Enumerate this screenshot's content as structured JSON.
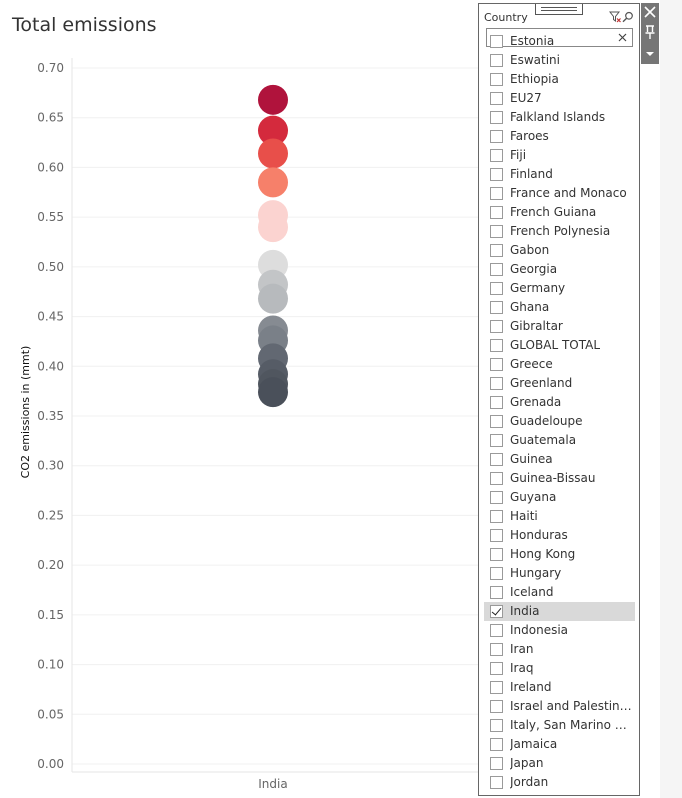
{
  "sheet": {
    "title": "Total emissions"
  },
  "chart_data": {
    "type": "scatter",
    "title": "Total emissions",
    "xlabel": "",
    "ylabel": "CO2 emissions in (mmt)",
    "categories": [
      "India"
    ],
    "ylim": [
      0,
      0.7
    ],
    "yticks": [
      0.0,
      0.05,
      0.1,
      0.15,
      0.2,
      0.25,
      0.3,
      0.35,
      0.4,
      0.45,
      0.5,
      0.55,
      0.6,
      0.65,
      0.7
    ],
    "ytick_labels": [
      "0.00",
      "0.05",
      "0.10",
      "0.15",
      "0.20",
      "0.25",
      "0.30",
      "0.35",
      "0.40",
      "0.45",
      "0.50",
      "0.55",
      "0.60",
      "0.65",
      "0.70"
    ],
    "grid": true,
    "points": [
      {
        "category": "India",
        "y": 0.668,
        "color": "#b0133c"
      },
      {
        "category": "India",
        "y": 0.637,
        "color": "#d42a3d"
      },
      {
        "category": "India",
        "y": 0.614,
        "color": "#e84f4a"
      },
      {
        "category": "India",
        "y": 0.585,
        "color": "#f6806a"
      },
      {
        "category": "India",
        "y": 0.552,
        "color": "#fbd3d0"
      },
      {
        "category": "India",
        "y": 0.54,
        "color": "#fbd3d0"
      },
      {
        "category": "India",
        "y": 0.502,
        "color": "#dddddd"
      },
      {
        "category": "India",
        "y": 0.482,
        "color": "#c3c5c7"
      },
      {
        "category": "India",
        "y": 0.468,
        "color": "#b7babd"
      },
      {
        "category": "India",
        "y": 0.436,
        "color": "#868b92"
      },
      {
        "category": "India",
        "y": 0.426,
        "color": "#7a8088"
      },
      {
        "category": "India",
        "y": 0.408,
        "color": "#626872"
      },
      {
        "category": "India",
        "y": 0.392,
        "color": "#565c66"
      },
      {
        "category": "India",
        "y": 0.382,
        "color": "#50565f"
      },
      {
        "category": "India",
        "y": 0.374,
        "color": "#4a505a"
      }
    ]
  },
  "filter": {
    "title": "Country",
    "search": {
      "value": "",
      "placeholder": ""
    },
    "items": [
      {
        "label": "Estonia",
        "checked": false
      },
      {
        "label": "Eswatini",
        "checked": false
      },
      {
        "label": "Ethiopia",
        "checked": false
      },
      {
        "label": "EU27",
        "checked": false
      },
      {
        "label": "Falkland Islands",
        "checked": false
      },
      {
        "label": "Faroes",
        "checked": false
      },
      {
        "label": "Fiji",
        "checked": false
      },
      {
        "label": "Finland",
        "checked": false
      },
      {
        "label": "France and Monaco",
        "checked": false
      },
      {
        "label": "French Guiana",
        "checked": false
      },
      {
        "label": "French Polynesia",
        "checked": false
      },
      {
        "label": "Gabon",
        "checked": false
      },
      {
        "label": "Georgia",
        "checked": false
      },
      {
        "label": "Germany",
        "checked": false
      },
      {
        "label": "Ghana",
        "checked": false
      },
      {
        "label": "Gibraltar",
        "checked": false
      },
      {
        "label": "GLOBAL TOTAL",
        "checked": false
      },
      {
        "label": "Greece",
        "checked": false
      },
      {
        "label": "Greenland",
        "checked": false
      },
      {
        "label": "Grenada",
        "checked": false
      },
      {
        "label": "Guadeloupe",
        "checked": false
      },
      {
        "label": "Guatemala",
        "checked": false
      },
      {
        "label": "Guinea",
        "checked": false
      },
      {
        "label": "Guinea-Bissau",
        "checked": false
      },
      {
        "label": "Guyana",
        "checked": false
      },
      {
        "label": "Haiti",
        "checked": false
      },
      {
        "label": "Honduras",
        "checked": false
      },
      {
        "label": "Hong Kong",
        "checked": false
      },
      {
        "label": "Hungary",
        "checked": false
      },
      {
        "label": "Iceland",
        "checked": false
      },
      {
        "label": "India",
        "checked": true
      },
      {
        "label": "Indonesia",
        "checked": false
      },
      {
        "label": "Iran",
        "checked": false
      },
      {
        "label": "Iraq",
        "checked": false
      },
      {
        "label": "Ireland",
        "checked": false
      },
      {
        "label": "Israel and Palestin…",
        "checked": false
      },
      {
        "label": "Italy, San Marino a…",
        "checked": false
      },
      {
        "label": "Jamaica",
        "checked": false
      },
      {
        "label": "Japan",
        "checked": false
      },
      {
        "label": "Jordan",
        "checked": false
      }
    ]
  },
  "icons": {
    "clear_filter": "filter-clear-icon",
    "search": "search-icon",
    "clear_search": "close-icon",
    "close_card": "close-icon",
    "pin_card": "pin-icon",
    "card_menu": "caret-down-icon"
  }
}
